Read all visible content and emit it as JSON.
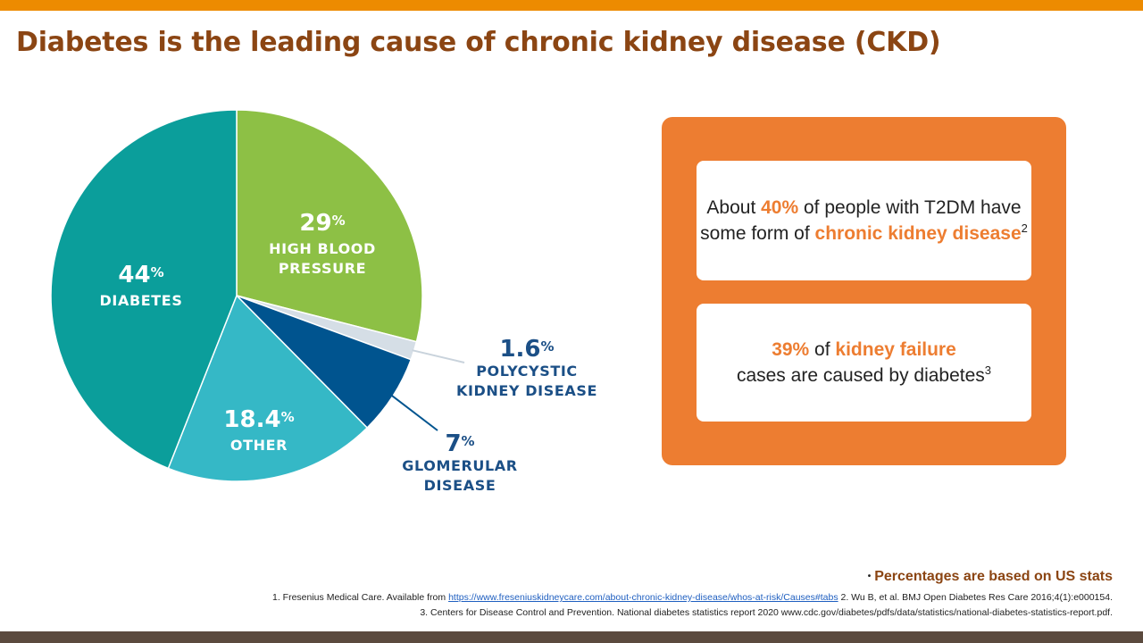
{
  "title": "Diabetes is the leading cause of chronic kidney disease (CKD)",
  "chart_data": {
    "type": "pie",
    "title": "",
    "slices": [
      {
        "name": "HIGH BLOOD PRESSURE",
        "lines": [
          "HIGH BLOOD",
          "PRESSURE"
        ],
        "value": 29,
        "label": "29",
        "color": "#8DC045",
        "label_style": "inside"
      },
      {
        "name": "POLYCYSTIC KIDNEY DISEASE",
        "lines": [
          "POLYCYSTIC",
          "KIDNEY DISEASE"
        ],
        "value": 1.6,
        "label": "1.6",
        "color": "#D5DEE6",
        "label_style": "outside"
      },
      {
        "name": "GLOMERULAR DISEASE",
        "lines": [
          "GLOMERULAR",
          "DISEASE"
        ],
        "value": 7,
        "label": "7",
        "color": "#00548F",
        "label_style": "outside"
      },
      {
        "name": "OTHER",
        "lines": [
          "OTHER"
        ],
        "value": 18.4,
        "label": "18.4",
        "color": "#35B8C6",
        "label_style": "inside"
      },
      {
        "name": "DIABETES",
        "lines": [
          "DIABETES"
        ],
        "value": 44,
        "label": "44",
        "color": "#0B9E9B",
        "label_style": "inside"
      }
    ],
    "percent_sign": "%"
  },
  "facts": {
    "card1": {
      "t1": "About ",
      "h1": "40%",
      "t2": " of people with T2DM have some form of ",
      "h2": "chronic kidney disease",
      "sup": "2"
    },
    "card2": {
      "h1": "39%",
      "t1": " of ",
      "h2": "kidney failure",
      "t2": " cases are caused by diabetes",
      "sup": "3"
    }
  },
  "footnote": {
    "bullet": "•",
    "note": "Percentages are based on US stats",
    "ref1_prefix": "1. Fresenius Medical Care. Available from ",
    "ref1_link": "https://www.freseniuskidneycare.com/about-chronic-kidney-disease/whos-at-risk/Causes#tabs",
    "ref1_suffix": " 2. Wu B, et al. BMJ Open Diabetes Res Care 2016;4(1):e000154.",
    "ref2": "3. Centers for Disease Control and Prevention. National diabetes statistics report 2020 www.cdc.gov/diabetes/pdfs/data/statistics/national-diabetes-statistics-report.pdf."
  }
}
